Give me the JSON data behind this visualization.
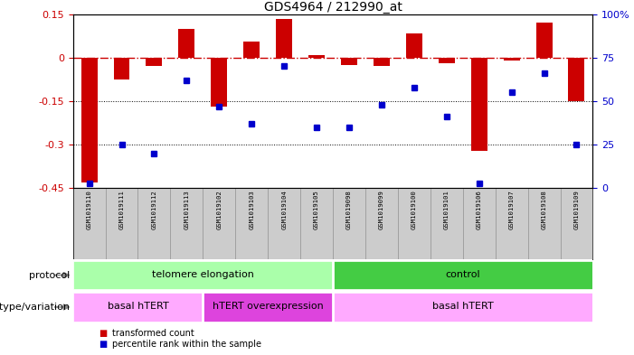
{
  "title": "GDS4964 / 212990_at",
  "samples": [
    "GSM1019110",
    "GSM1019111",
    "GSM1019112",
    "GSM1019113",
    "GSM1019102",
    "GSM1019103",
    "GSM1019104",
    "GSM1019105",
    "GSM1019098",
    "GSM1019099",
    "GSM1019100",
    "GSM1019101",
    "GSM1019106",
    "GSM1019107",
    "GSM1019108",
    "GSM1019109"
  ],
  "transformed_count": [
    -0.43,
    -0.075,
    -0.03,
    0.1,
    -0.17,
    0.055,
    0.135,
    0.01,
    -0.025,
    -0.03,
    0.085,
    -0.02,
    -0.32,
    -0.01,
    0.12,
    -0.15
  ],
  "percentile_rank": [
    3,
    25,
    20,
    62,
    47,
    37,
    70,
    35,
    35,
    48,
    58,
    41,
    3,
    55,
    66,
    25
  ],
  "ylim_left": [
    -0.45,
    0.15
  ],
  "ylim_right": [
    0,
    100
  ],
  "yticks_left": [
    -0.45,
    -0.3,
    -0.15,
    0.0,
    0.15
  ],
  "ytick_labels_left": [
    "-0.45",
    "-0.3",
    "-0.15",
    "0",
    "0.15"
  ],
  "yticks_right": [
    0,
    25,
    50,
    75,
    100
  ],
  "ytick_labels_right": [
    "0",
    "25",
    "50",
    "75",
    "100%"
  ],
  "hline_zero": 0.0,
  "hline_minus015": -0.15,
  "hline_minus030": -0.3,
  "protocol_groups": [
    {
      "label": "telomere elongation",
      "start": 0,
      "end": 8,
      "color": "#aaffaa"
    },
    {
      "label": "control",
      "start": 8,
      "end": 16,
      "color": "#44cc44"
    }
  ],
  "genotype_groups": [
    {
      "label": "basal hTERT",
      "start": 0,
      "end": 4,
      "color": "#ffaaff"
    },
    {
      "label": "hTERT overexpression",
      "start": 4,
      "end": 8,
      "color": "#dd44dd"
    },
    {
      "label": "basal hTERT",
      "start": 8,
      "end": 16,
      "color": "#ffaaff"
    }
  ],
  "bar_color": "#cc0000",
  "dot_color": "#0000cc",
  "dashed_line_color": "#cc0000",
  "dotted_line_color": "#000000",
  "plot_bg_color": "#ffffff",
  "tick_label_color_left": "#cc0000",
  "tick_label_color_right": "#0000cc",
  "sample_bg_color": "#cccccc",
  "arrow_color": "#888888"
}
